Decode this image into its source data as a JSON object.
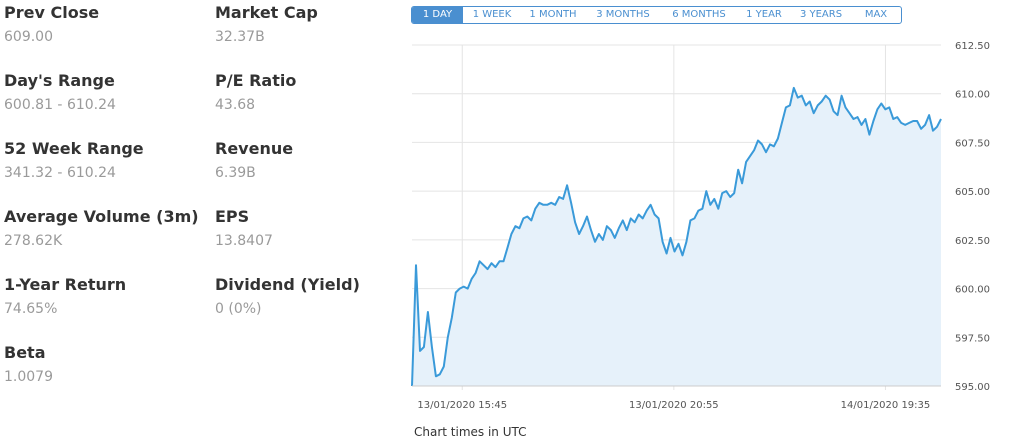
{
  "stats": [
    {
      "label": "Prev Close",
      "value": "609.00"
    },
    {
      "label": "Market Cap",
      "value": "32.37B"
    },
    {
      "label": "Day's Range",
      "value": "600.81 - 610.24"
    },
    {
      "label": "P/E Ratio",
      "value": "43.68"
    },
    {
      "label": "52 Week Range",
      "value": "341.32 - 610.24"
    },
    {
      "label": "Revenue",
      "value": "6.39B"
    },
    {
      "label": "Average Volume (3m)",
      "value": "278.62K"
    },
    {
      "label": "EPS",
      "value": "13.8407"
    },
    {
      "label": "1-Year Return",
      "value": "74.65%"
    },
    {
      "label": "Dividend (Yield)",
      "value": "0 (0%)"
    },
    {
      "label": "Beta",
      "value": "1.0079"
    }
  ],
  "range_tabs": {
    "active": "1 DAY",
    "items": [
      "1 DAY",
      "1 WEEK",
      "1 MONTH",
      "3 MONTHS",
      "6 MONTHS",
      "1 YEAR",
      "3 YEARS",
      "MAX"
    ]
  },
  "note": "Chart times in UTC",
  "colors": {
    "line": "#3a9ad9",
    "fill": "#e6f1fa",
    "grid": "#e4e4e4",
    "tab_accent": "#4a8fd0"
  },
  "chart_data": {
    "type": "area",
    "title": "",
    "xlabel": "",
    "ylabel": "",
    "ylim": [
      595.0,
      612.5
    ],
    "y_ticks": [
      "612.50",
      "610.00",
      "607.50",
      "605.00",
      "602.50",
      "600.00",
      "597.50",
      "595.00"
    ],
    "x_ticks": [
      "13/01/2020 15:45",
      "13/01/2020 20:55",
      "14/01/2020 19:35"
    ],
    "grid": true,
    "values": [
      595.0,
      601.2,
      596.8,
      597.0,
      598.8,
      597.0,
      595.5,
      595.6,
      596.0,
      597.5,
      598.5,
      599.8,
      600.0,
      600.1,
      600.0,
      600.5,
      600.8,
      601.4,
      601.2,
      601.0,
      601.3,
      601.1,
      601.4,
      601.4,
      602.1,
      602.8,
      603.2,
      603.1,
      603.6,
      603.7,
      603.5,
      604.1,
      604.4,
      604.3,
      604.3,
      604.4,
      604.3,
      604.7,
      604.6,
      605.3,
      604.4,
      603.4,
      602.8,
      603.2,
      603.7,
      603.0,
      602.4,
      602.8,
      602.5,
      603.2,
      603.0,
      602.6,
      603.1,
      603.5,
      603.0,
      603.6,
      603.4,
      603.8,
      603.6,
      604.0,
      604.3,
      603.8,
      603.6,
      602.4,
      601.8,
      602.6,
      601.9,
      602.3,
      601.7,
      602.4,
      603.5,
      603.6,
      604.0,
      604.1,
      605.0,
      604.3,
      604.6,
      604.1,
      604.9,
      605.0,
      604.7,
      604.9,
      606.1,
      605.4,
      606.5,
      606.8,
      607.1,
      607.6,
      607.4,
      607.0,
      607.4,
      607.3,
      607.7,
      608.5,
      609.3,
      609.4,
      610.3,
      609.8,
      609.9,
      609.4,
      609.6,
      609.0,
      609.4,
      609.6,
      609.9,
      609.7,
      609.1,
      608.9,
      609.9,
      609.3,
      609.0,
      608.7,
      608.8,
      608.4,
      608.7,
      607.9,
      608.6,
      609.2,
      609.5,
      609.2,
      609.3,
      608.7,
      608.8,
      608.5,
      608.4,
      608.5,
      608.6,
      608.6,
      608.2,
      608.4,
      608.9,
      608.1,
      608.3,
      608.7
    ]
  }
}
